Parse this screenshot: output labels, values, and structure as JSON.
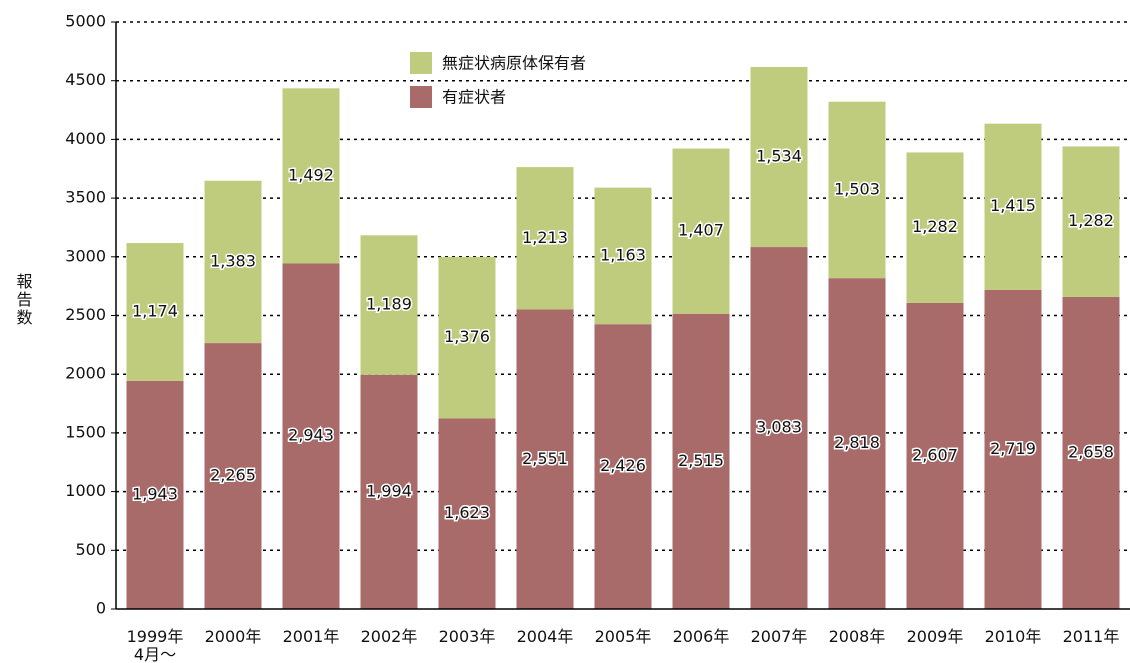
{
  "chart_data": {
    "type": "stacked_bar",
    "y_label": "報告数",
    "categories": [
      "1999年\n4月～",
      "2000年",
      "2001年",
      "2002年",
      "2003年",
      "2004年",
      "2005年",
      "2006年",
      "2007年",
      "2008年",
      "2009年",
      "2010年",
      "2011年"
    ],
    "series": [
      {
        "name": "有症状者",
        "color": "#a86b6a",
        "values": [
          1943,
          2265,
          2943,
          1994,
          1623,
          2551,
          2426,
          2515,
          3083,
          2818,
          2607,
          2719,
          2658
        ],
        "value_labels": [
          "1,943",
          "2,265",
          "2,943",
          "1,994",
          "1,623",
          "2,551",
          "2,426",
          "2,515",
          "3,083",
          "2,818",
          "2,607",
          "2,719",
          "2,658"
        ]
      },
      {
        "name": "無症状病原体保有者",
        "color": "#bfcc7e",
        "values": [
          1174,
          1383,
          1492,
          1189,
          1376,
          1213,
          1163,
          1407,
          1534,
          1503,
          1282,
          1415,
          1282
        ],
        "value_labels": [
          "1,174",
          "1,383",
          "1,492",
          "1,189",
          "1,376",
          "1,213",
          "1,163",
          "1,407",
          "1,534",
          "1,503",
          "1,282",
          "1,415",
          "1,282"
        ]
      }
    ],
    "ylim": [
      0,
      5000
    ],
    "yticks": [
      0,
      500,
      1000,
      1500,
      2000,
      2500,
      3000,
      3500,
      4000,
      4500,
      5000
    ],
    "grid": true,
    "legend": "top"
  }
}
